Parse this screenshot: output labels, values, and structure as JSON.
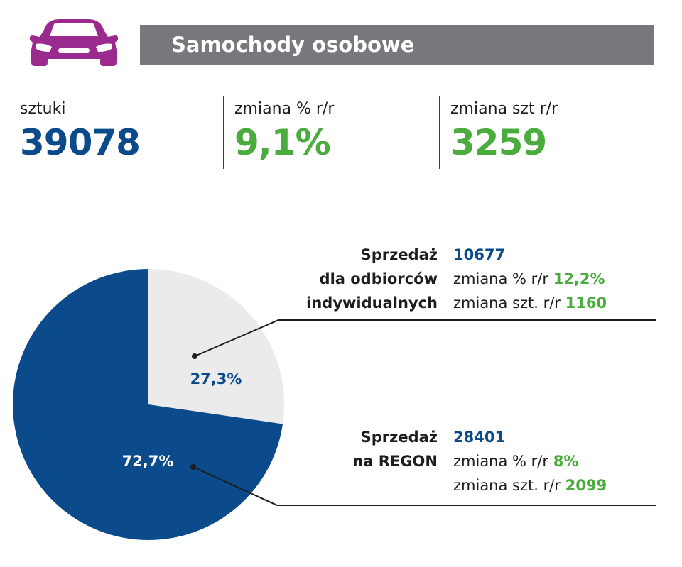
{
  "header": {
    "title": "Samochody osobowe",
    "icon": "car-icon",
    "icon_color": "#9b2a8f",
    "bar_color": "#77787b"
  },
  "stats": [
    {
      "label": "sztuki",
      "value": "39078"
    },
    {
      "label": "zmiana % r/r",
      "value": "9,1%"
    },
    {
      "label": "zmiana szt r/r",
      "value": "3259"
    }
  ],
  "colors": {
    "blue": "#0b4a8b",
    "green": "#4aac3c",
    "light_gray": "#ebebeb"
  },
  "segments": [
    {
      "name_lines": [
        "Sprzedaż",
        "dla odbiorców",
        "indywidualnych"
      ],
      "value": "10677",
      "pct_change_label": "zmiana % r/r",
      "pct_change": "12,2%",
      "unit_change_label": "zmiana szt. r/r",
      "unit_change": "1160"
    },
    {
      "name_lines": [
        "Sprzedaż",
        "na REGON"
      ],
      "value": "28401",
      "pct_change_label": "zmiana % r/r",
      "pct_change": "8%",
      "unit_change_label": "zmiana szt. r/r",
      "unit_change": "2099"
    }
  ],
  "chart_data": {
    "type": "pie",
    "slices": [
      {
        "label": "27,3%",
        "value": 27.3,
        "color": "#ebebeb",
        "label_color": "#0b4a8b"
      },
      {
        "label": "72,7%",
        "value": 72.7,
        "color": "#0b4a8b",
        "label_color": "#ffffff"
      }
    ]
  }
}
